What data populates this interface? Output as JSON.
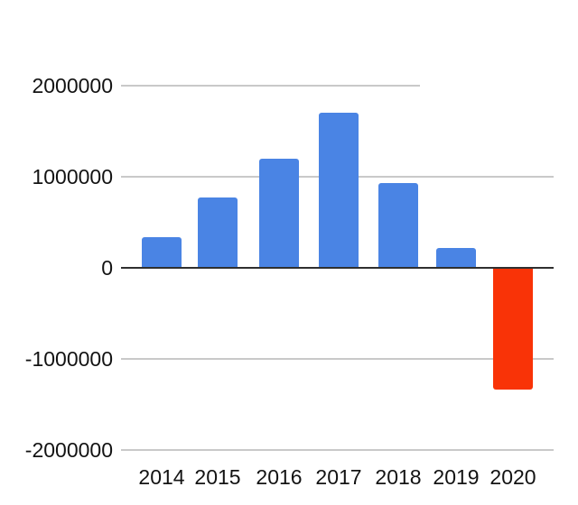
{
  "chart_data": {
    "type": "bar",
    "title": "",
    "xlabel": "",
    "ylabel": "",
    "categories": [
      "2014",
      "2015",
      "2016",
      "2017",
      "2018",
      "2019",
      "2020"
    ],
    "values": [
      340000,
      770000,
      1200000,
      1700000,
      930000,
      220000,
      -1330000
    ],
    "bar_colors": [
      "#4a84e4",
      "#4a84e4",
      "#4a84e4",
      "#4a84e4",
      "#4a84e4",
      "#4a84e4",
      "#f93307"
    ],
    "positive_color": "#4a84e4",
    "negative_color": "#f93307",
    "ylim": [
      -2000000,
      2000000
    ],
    "yticks": [
      {
        "value": 2000000,
        "label": "2000000"
      },
      {
        "value": 1000000,
        "label": "1000000"
      },
      {
        "value": 0,
        "label": "0"
      },
      {
        "value": -1000000,
        "label": "-1000000"
      },
      {
        "value": -2000000,
        "label": "-2000000"
      }
    ],
    "grid": "horizontal",
    "legend": "none",
    "colors": {
      "gridline": "#c9c9c9",
      "axis_line": "#2f2f2f",
      "text": "#131313",
      "background": "#ffffff"
    }
  }
}
